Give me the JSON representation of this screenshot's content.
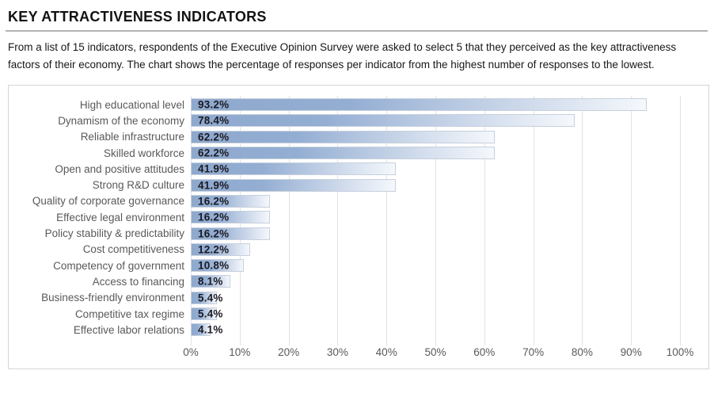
{
  "header": {
    "title": "KEY ATTRACTIVENESS INDICATORS"
  },
  "description": "From a list of 15 indicators, respondents of the Executive Opinion Survey were asked to select 5 that they perceived as the key attractiveness factors of their economy. The chart shows the percentage of responses per indicator from the highest number of responses to the lowest.",
  "chart_data": {
    "type": "bar",
    "orientation": "horizontal",
    "categories": [
      "High educational level",
      "Dynamism of the economy",
      "Reliable infrastructure",
      "Skilled workforce",
      "Open and positive attitudes",
      "Strong R&D culture",
      "Quality of corporate governance",
      "Effective legal environment",
      "Policy stability & predictability",
      "Cost competitiveness",
      "Competency of government",
      "Access to financing",
      "Business-friendly environment",
      "Competitive tax regime",
      "Effective labor relations"
    ],
    "values": [
      93.2,
      78.4,
      62.2,
      62.2,
      41.9,
      41.9,
      16.2,
      16.2,
      16.2,
      12.2,
      10.8,
      8.1,
      5.4,
      5.4,
      4.1
    ],
    "value_labels": [
      "93.2%",
      "78.4%",
      "62.2%",
      "62.2%",
      "41.9%",
      "41.9%",
      "16.2%",
      "16.2%",
      "16.2%",
      "12.2%",
      "10.8%",
      "8.1%",
      "5.4%",
      "5.4%",
      "4.1%"
    ],
    "title": "",
    "xlabel": "",
    "ylabel": "",
    "xlim": [
      0,
      100
    ],
    "x_ticks": [
      "0%",
      "10%",
      "20%",
      "30%",
      "40%",
      "50%",
      "60%",
      "70%",
      "80%",
      "90%",
      "100%"
    ],
    "grid": "vertical-only",
    "legend": "none",
    "colors": {
      "bar_gradient_start": "#8fa9ce",
      "bar_gradient_end": "#f5f8fc",
      "bar_border": "#c7d0dd",
      "gridline": "#e2e2e2",
      "category_text": "#595959",
      "value_text": "#1a1a22",
      "panel_border": "#d5d5d5"
    }
  }
}
